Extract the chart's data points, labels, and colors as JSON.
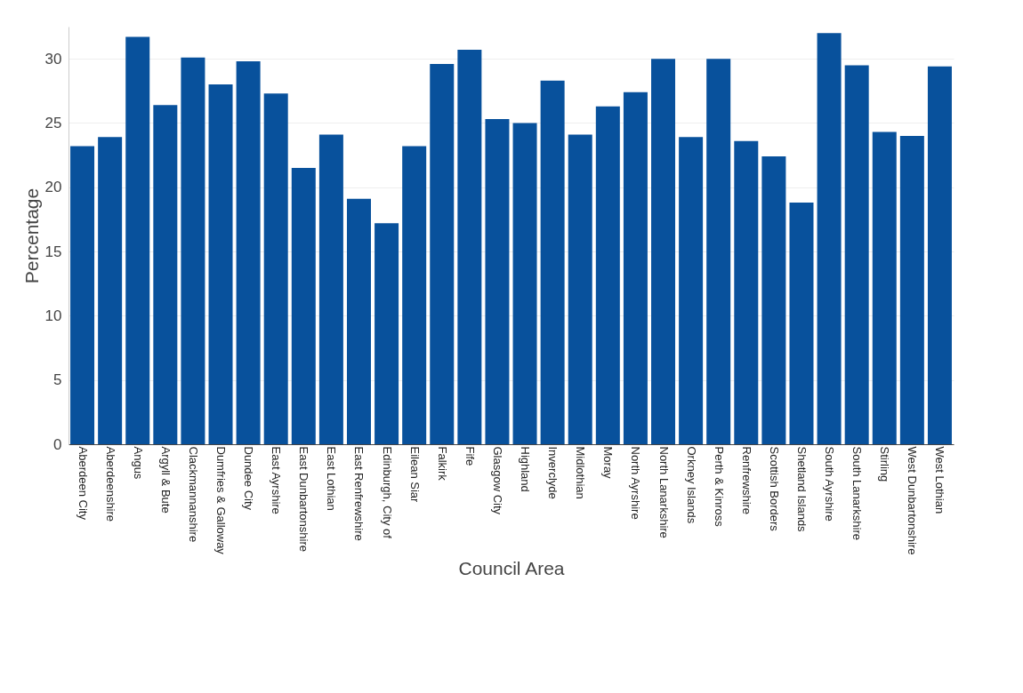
{
  "chart_data": {
    "type": "bar",
    "xlabel": "Council Area",
    "ylabel": "Percentage",
    "categories": [
      "Aberdeen City",
      "Aberdeenshire",
      "Angus",
      "Argyll & Bute",
      "Clackmannanshire",
      "Dumfries & Galloway",
      "Dundee City",
      "East Ayrshire",
      "East Dunbartonshire",
      "East Lothian",
      "East Renfrewshire",
      "Edinburgh, City of",
      "Eilean Siar",
      "Falkirk",
      "Fife",
      "Glasgow City",
      "Highland",
      "Inverclyde",
      "Midlothian",
      "Moray",
      "North Ayrshire",
      "North Lanarkshire",
      "Orkney Islands",
      "Perth & Kinross",
      "Renfrewshire",
      "Scottish Borders",
      "Shetland Islands",
      "South Ayrshire",
      "South Lanarkshire",
      "Stirling",
      "West Dunbartonshire",
      "West Lothian"
    ],
    "values": [
      23.2,
      23.9,
      31.7,
      26.4,
      30.1,
      28.0,
      29.8,
      27.3,
      21.5,
      24.1,
      19.1,
      17.2,
      23.2,
      29.6,
      30.7,
      25.3,
      25.0,
      28.3,
      24.1,
      26.3,
      27.4,
      30.0,
      23.9,
      30.0,
      23.6,
      22.4,
      18.8,
      32.0,
      29.5,
      24.3,
      24.0,
      29.4
    ],
    "color": "#08519c",
    "ylim": [
      0,
      32.5
    ],
    "yticks": [
      0,
      5,
      10,
      15,
      20,
      25,
      30
    ],
    "grid": "y"
  }
}
